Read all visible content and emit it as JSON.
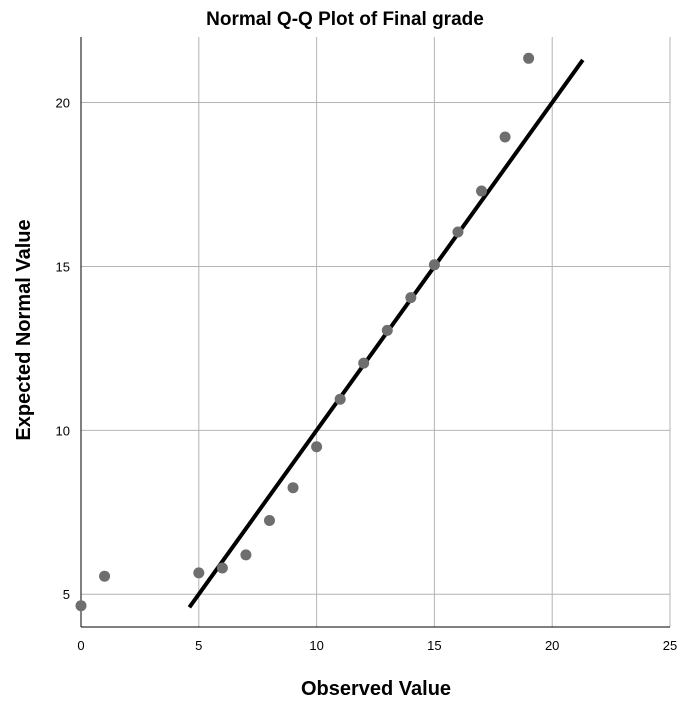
{
  "chart_data": {
    "type": "scatter",
    "title": "Normal Q-Q Plot of Final grade",
    "xlabel": "Observed Value",
    "ylabel": "Expected Normal Value",
    "xlim": [
      0,
      25
    ],
    "ylim": [
      4,
      22
    ],
    "xticks": [
      0,
      5,
      10,
      15,
      20,
      25
    ],
    "yticks": [
      5,
      10,
      15,
      20
    ],
    "grid": true,
    "colors": {
      "points": "#6e6e6e",
      "reference_line": "#000000",
      "grid": "#b4b4b4"
    },
    "points": [
      {
        "x": 0,
        "y": 4.65
      },
      {
        "x": 1,
        "y": 5.55
      },
      {
        "x": 5,
        "y": 5.65
      },
      {
        "x": 6,
        "y": 5.8
      },
      {
        "x": 7,
        "y": 6.2
      },
      {
        "x": 8,
        "y": 7.25
      },
      {
        "x": 9,
        "y": 8.25
      },
      {
        "x": 10,
        "y": 9.5
      },
      {
        "x": 11,
        "y": 10.95
      },
      {
        "x": 12,
        "y": 12.05
      },
      {
        "x": 13,
        "y": 13.05
      },
      {
        "x": 14,
        "y": 14.05
      },
      {
        "x": 15,
        "y": 15.05
      },
      {
        "x": 16,
        "y": 16.05
      },
      {
        "x": 17,
        "y": 17.3
      },
      {
        "x": 18,
        "y": 18.95
      },
      {
        "x": 19,
        "y": 21.35
      }
    ],
    "reference_line": {
      "x": [
        4.6,
        21.3
      ],
      "y": [
        4.6,
        21.3
      ]
    }
  }
}
